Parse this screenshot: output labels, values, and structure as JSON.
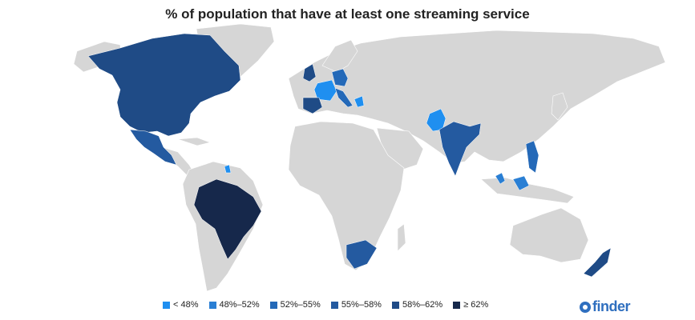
{
  "title": "% of population that have at least one streaming service",
  "colors": {
    "base_land": "#d6d6d6",
    "lt48": "#1f8ff0",
    "b48_52": "#2a7fd4",
    "b52_55": "#2469b8",
    "b55_58": "#245aa0",
    "b58_62": "#1f4b86",
    "ge62": "#16284b",
    "brand": "#2f6fbf"
  },
  "legend": [
    {
      "label": "< 48%",
      "color": "#1f8ff0"
    },
    {
      "label": "48%–52%",
      "color": "#2a7fd4"
    },
    {
      "label": "52%–55%",
      "color": "#2469b8"
    },
    {
      "label": "55%–58%",
      "color": "#245aa0"
    },
    {
      "label": "58%–62%",
      "color": "#1f4b86"
    },
    {
      "label": "≥ 62%",
      "color": "#16284b"
    }
  ],
  "brand": {
    "name": "finder",
    "icon": "finder-logo-icon"
  },
  "highlighted_regions": [
    {
      "region": "North America (Canada, USA)",
      "bucket": "58%–62%"
    },
    {
      "region": "Mexico",
      "bucket": "55%–58%"
    },
    {
      "region": "Brazil",
      "bucket": "≥ 62%"
    },
    {
      "region": "UK / Ireland",
      "bucket": "58%–62%"
    },
    {
      "region": "France",
      "bucket": "< 48%"
    },
    {
      "region": "Spain",
      "bucket": "58%–62%"
    },
    {
      "region": "Germany",
      "bucket": "52%–55%"
    },
    {
      "region": "Italy",
      "bucket": "52%–55%"
    },
    {
      "region": "Pakistan",
      "bucket": "< 48%"
    },
    {
      "region": "India",
      "bucket": "55%–58%"
    },
    {
      "region": "Philippines",
      "bucket": "52%–55%"
    },
    {
      "region": "South Africa",
      "bucket": "55%–58%"
    },
    {
      "region": "New Zealand",
      "bucket": "58%–62%"
    }
  ]
}
